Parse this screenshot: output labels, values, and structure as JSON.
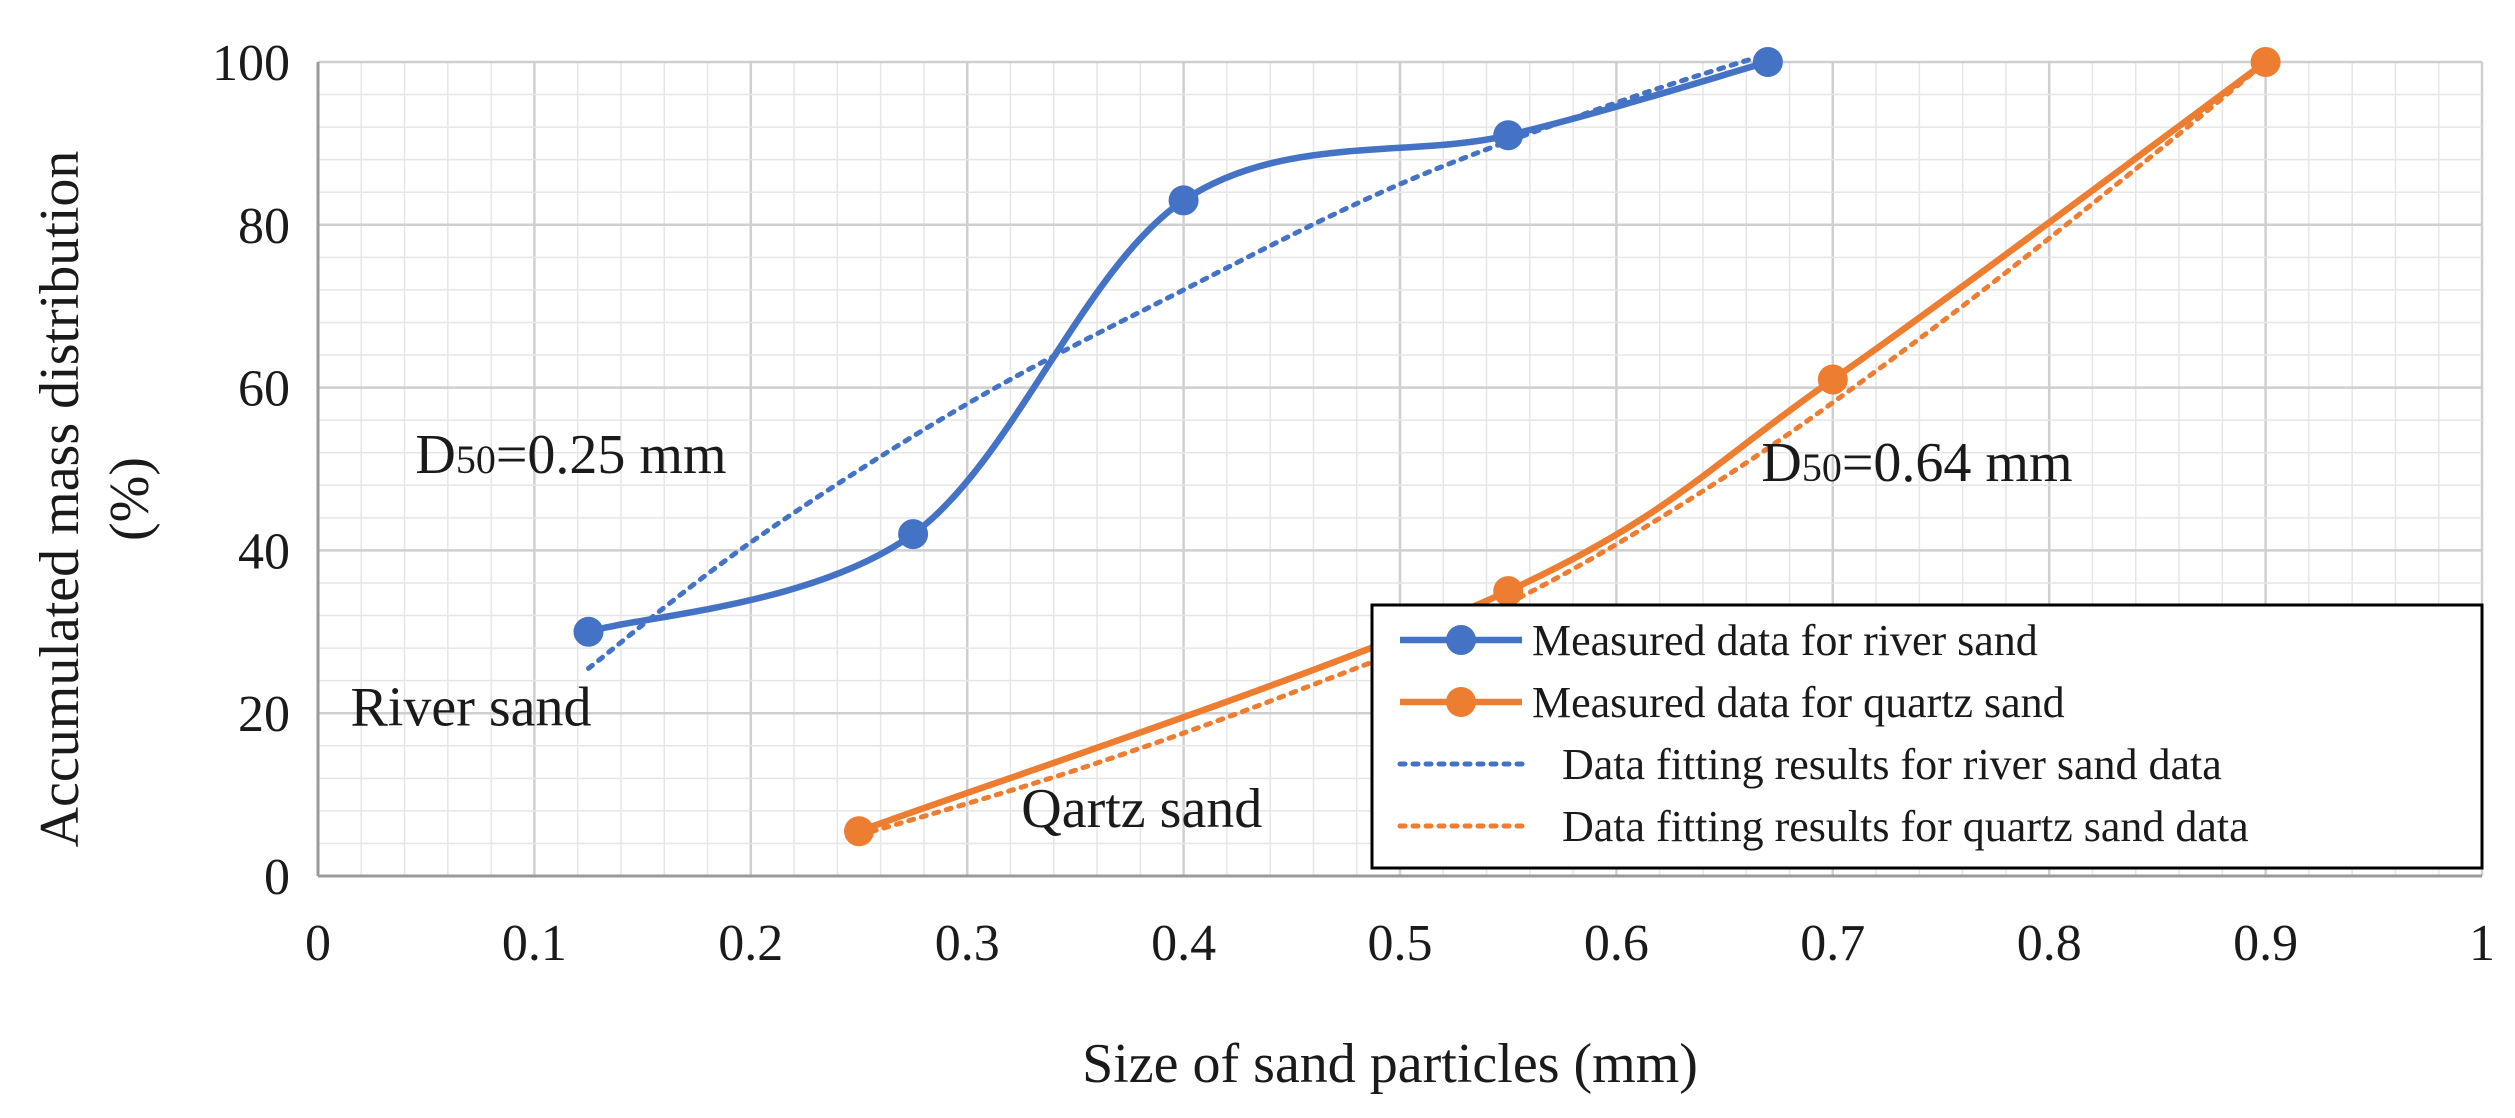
{
  "chart_data": {
    "type": "line",
    "title": "",
    "xlabel": "Size of sand particles (mm)",
    "ylabel": "Accumulated mass distribution (%)",
    "ylabel_lines": [
      "Accumulated mass distribution",
      "(%)"
    ],
    "xlim": [
      0,
      1
    ],
    "ylim": [
      0,
      100
    ],
    "x_ticks": [
      "0",
      "0.1",
      "0.2",
      "0.3",
      "0.4",
      "0.5",
      "0.6",
      "0.7",
      "0.8",
      "0.9",
      "1"
    ],
    "y_ticks": [
      "0",
      "20",
      "40",
      "60",
      "80",
      "100"
    ],
    "grid": true,
    "legend_position": "bottom-right",
    "series": [
      {
        "name": "Measured data for river sand",
        "style": "solid-markers",
        "color": "#4472C4",
        "x": [
          0.125,
          0.275,
          0.4,
          0.55,
          0.67
        ],
        "y": [
          30,
          42,
          83,
          91,
          100
        ]
      },
      {
        "name": "Measured data for quartz sand",
        "style": "solid-markers",
        "color": "#ED7D31",
        "x": [
          0.25,
          0.55,
          0.7,
          0.9
        ],
        "y": [
          5.5,
          35,
          61,
          100
        ]
      },
      {
        "name": "Data fitting results for river sand data",
        "style": "dotted",
        "color": "#4472C4",
        "x": [
          0.125,
          0.2,
          0.3,
          0.4,
          0.5,
          0.6,
          0.67
        ],
        "y": [
          25.5,
          41,
          58,
          72,
          85,
          95,
          101
        ]
      },
      {
        "name": "Data fitting results for quartz sand data",
        "style": "dotted",
        "color": "#ED7D31",
        "x": [
          0.25,
          0.35,
          0.45,
          0.55,
          0.65,
          0.75,
          0.85,
          0.9
        ],
        "y": [
          5,
          13,
          22.5,
          33.5,
          49,
          68,
          89,
          100
        ]
      }
    ],
    "annotations": [
      {
        "id": "river-d50",
        "prefix": "D",
        "subscript": "50",
        "text": "=0.25 mm",
        "x": 0.045,
        "y": 49.5
      },
      {
        "id": "quartz-d50",
        "prefix": "D",
        "subscript": "50",
        "text": "=0.64 mm",
        "x": 0.667,
        "y": 48.5
      },
      {
        "id": "river-label",
        "text": "River sand",
        "x": 0.015,
        "y": 18.5
      },
      {
        "id": "quartz-label",
        "text": "Qartz sand",
        "x": 0.325,
        "y": 6
      }
    ]
  }
}
